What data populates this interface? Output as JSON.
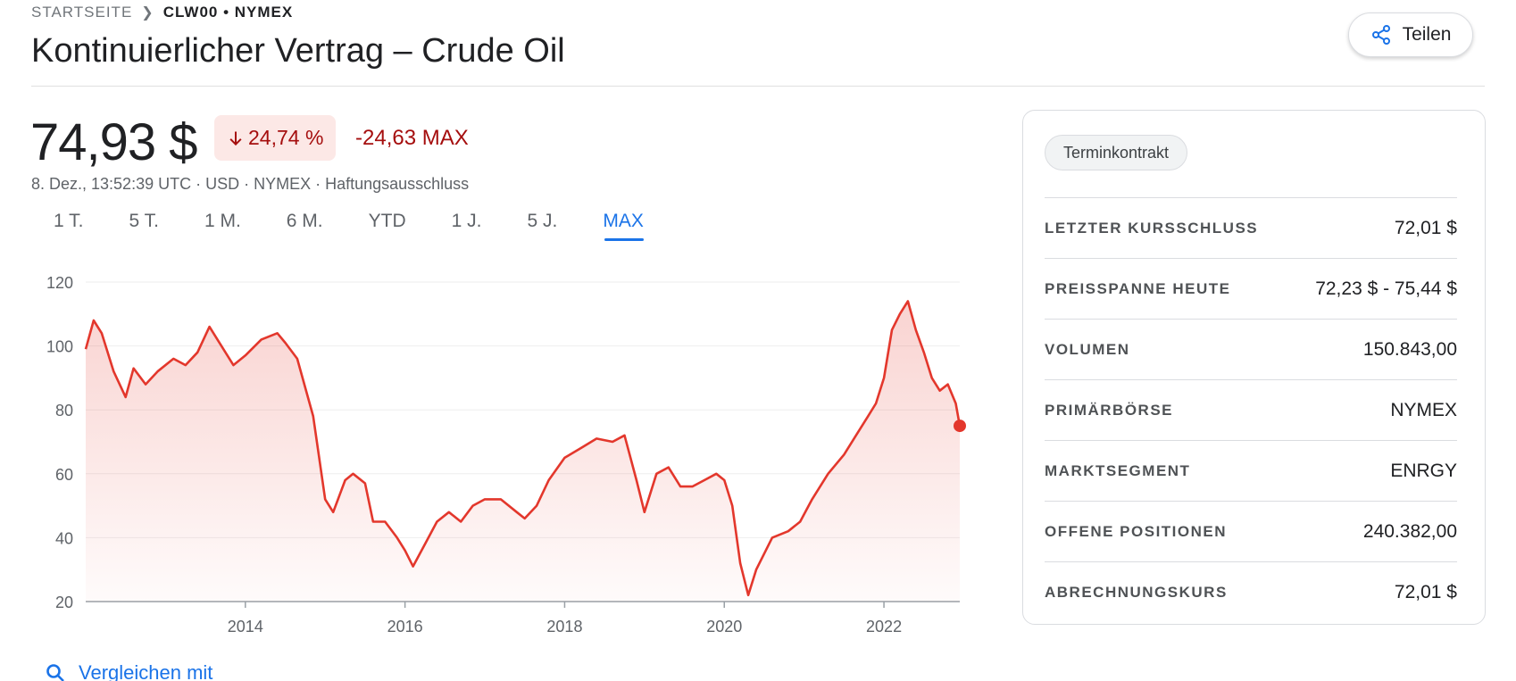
{
  "breadcrumb": {
    "home": "STARTSEITE",
    "ticker": "CLW00 • NYMEX"
  },
  "title": "Kontinuierlicher Vertrag – Crude Oil",
  "share_label": "Teilen",
  "quote": {
    "price": "74,93 $",
    "change_percent": "24,74 %",
    "change_abs": "-24,63 MAX",
    "meta": "8. Dez., 13:52:39 UTC · USD · NYMEX · Haftungsausschluss"
  },
  "ranges": [
    "1 T.",
    "5 T.",
    "1 M.",
    "6 M.",
    "YTD",
    "1 J.",
    "5 J.",
    "MAX"
  ],
  "active_range": "MAX",
  "compare_label": "Vergleichen mit",
  "chip_label": "Terminkontrakt",
  "stats": [
    {
      "label": "LETZTER KURSSCHLUSS",
      "value": "72,01 $"
    },
    {
      "label": "PREISSPANNE HEUTE",
      "value": "72,23 $ - 75,44 $"
    },
    {
      "label": "VOLUMEN",
      "value": "150.843,00"
    },
    {
      "label": "PRIMÄRBÖRSE",
      "value": "NYMEX"
    },
    {
      "label": "MARKTSEGMENT",
      "value": "ENRGY"
    },
    {
      "label": "OFFENE POSITIONEN",
      "value": "240.382,00"
    },
    {
      "label": "ABRECHNUNGSKURS",
      "value": "72,01 $"
    }
  ],
  "colors": {
    "line": "#e3372c",
    "down_bg": "#fce8e6",
    "down_text": "#a50e0e",
    "accent": "#1a73e8"
  },
  "chart_data": {
    "type": "area",
    "y_ticks": [
      20,
      40,
      60,
      80,
      100,
      120
    ],
    "x_ticks": [
      "2014",
      "2016",
      "2018",
      "2020",
      "2022"
    ],
    "ylim": [
      20,
      120
    ],
    "xlim": [
      2012.0,
      2022.95
    ],
    "grid": true,
    "x": [
      2012.0,
      2012.1,
      2012.2,
      2012.35,
      2012.5,
      2012.6,
      2012.75,
      2012.9,
      2013.1,
      2013.25,
      2013.4,
      2013.55,
      2013.7,
      2013.85,
      2014.0,
      2014.2,
      2014.4,
      2014.5,
      2014.65,
      2014.85,
      2015.0,
      2015.1,
      2015.25,
      2015.35,
      2015.5,
      2015.6,
      2015.75,
      2015.9,
      2016.0,
      2016.1,
      2016.25,
      2016.4,
      2016.55,
      2016.7,
      2016.85,
      2017.0,
      2017.2,
      2017.4,
      2017.5,
      2017.65,
      2017.8,
      2018.0,
      2018.2,
      2018.4,
      2018.6,
      2018.75,
      2018.9,
      2019.0,
      2019.15,
      2019.3,
      2019.45,
      2019.6,
      2019.75,
      2019.9,
      2020.0,
      2020.1,
      2020.2,
      2020.3,
      2020.4,
      2020.6,
      2020.8,
      2020.95,
      2021.1,
      2021.3,
      2021.5,
      2021.65,
      2021.8,
      2021.9,
      2022.0,
      2022.1,
      2022.2,
      2022.3,
      2022.4,
      2022.5,
      2022.6,
      2022.7,
      2022.8,
      2022.9,
      2022.95
    ],
    "values": [
      99,
      108,
      104,
      92,
      84,
      93,
      88,
      92,
      96,
      94,
      98,
      106,
      100,
      94,
      97,
      102,
      104,
      101,
      96,
      78,
      52,
      48,
      58,
      60,
      57,
      45,
      45,
      40,
      36,
      31,
      38,
      45,
      48,
      45,
      50,
      52,
      52,
      48,
      46,
      50,
      58,
      65,
      68,
      71,
      70,
      72,
      58,
      48,
      60,
      62,
      56,
      56,
      58,
      60,
      58,
      50,
      32,
      22,
      30,
      40,
      42,
      45,
      52,
      60,
      66,
      72,
      78,
      82,
      90,
      105,
      110,
      114,
      105,
      98,
      90,
      86,
      88,
      82,
      75
    ]
  }
}
